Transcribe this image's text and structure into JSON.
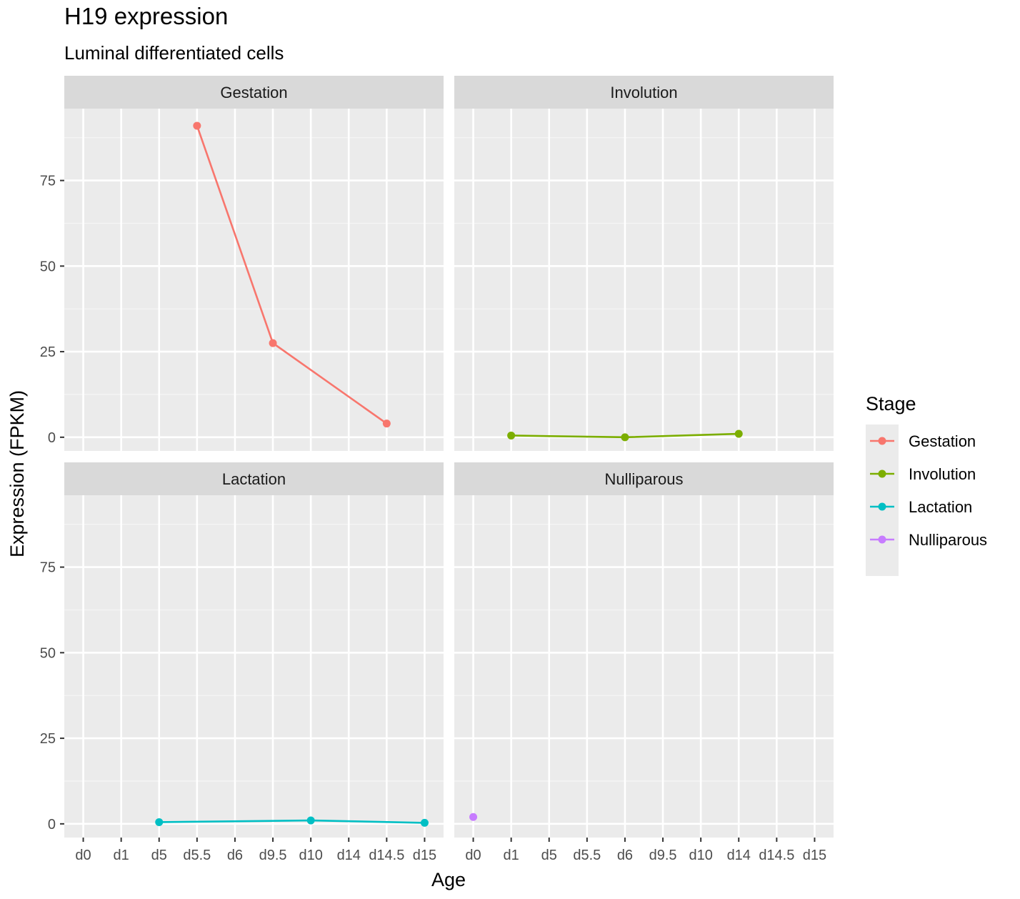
{
  "chart_data": {
    "type": "line",
    "title": "H19 expression",
    "subtitle": "Luminal differentiated cells",
    "xlabel": "Age",
    "ylabel": "Expression (FPKM)",
    "categories": [
      "d0",
      "d1",
      "d5",
      "d5.5",
      "d6",
      "d9.5",
      "d10",
      "d14",
      "d14.5",
      "d15"
    ],
    "y_ticks": [
      0,
      25,
      50,
      75
    ],
    "ylim": [
      -4,
      96
    ],
    "grid": true,
    "facet_by": "Stage",
    "facets": [
      "Gestation",
      "Involution",
      "Lactation",
      "Nulliparous"
    ],
    "legend": {
      "title": "Stage",
      "position": "right",
      "entries": [
        "Gestation",
        "Involution",
        "Lactation",
        "Nulliparous"
      ]
    },
    "series": [
      {
        "name": "Gestation",
        "color": "#F8766D",
        "points": [
          {
            "x": "d5.5",
            "y": 91
          },
          {
            "x": "d9.5",
            "y": 27.5
          },
          {
            "x": "d14.5",
            "y": 4
          }
        ]
      },
      {
        "name": "Involution",
        "color": "#7CAE00",
        "points": [
          {
            "x": "d1",
            "y": 0.5
          },
          {
            "x": "d6",
            "y": 0
          },
          {
            "x": "d14",
            "y": 1
          }
        ]
      },
      {
        "name": "Lactation",
        "color": "#00BFC4",
        "points": [
          {
            "x": "d5",
            "y": 0.5
          },
          {
            "x": "d10",
            "y": 1
          },
          {
            "x": "d15",
            "y": 0.3
          }
        ]
      },
      {
        "name": "Nulliparous",
        "color": "#C77CFF",
        "points": [
          {
            "x": "d0",
            "y": 2
          }
        ]
      }
    ]
  }
}
